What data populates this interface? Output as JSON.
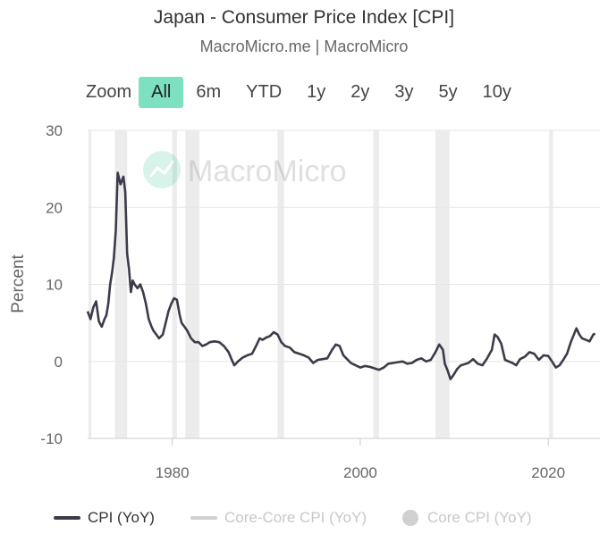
{
  "chart_data": {
    "type": "line",
    "title": "Japan - Consumer Price Index [CPI]",
    "subtitle": "MacroMicro.me | MacroMicro",
    "ylabel": "Percent",
    "xlabel": "",
    "xlim": [
      1971,
      2025.5
    ],
    "ylim": [
      -10,
      30
    ],
    "yticks": [
      30,
      20,
      10,
      0,
      -10
    ],
    "xticks": [
      1980,
      2000,
      2020
    ],
    "watermark": "MacroMicro",
    "recessions": [
      [
        1971.1,
        1971.4
      ],
      [
        1973.9,
        1975.2
      ],
      [
        1980.0,
        1980.5
      ],
      [
        1981.4,
        1982.9
      ],
      [
        1991.2,
        1991.9
      ],
      [
        2001.4,
        2002.0
      ],
      [
        2008.0,
        2009.5
      ],
      [
        2020.1,
        2020.5
      ]
    ],
    "series": [
      {
        "name": "CPI (YoY)",
        "color": "#3b3b4a",
        "x": [
          1971.0,
          1971.3,
          1971.6,
          1971.9,
          1972.2,
          1972.5,
          1972.8,
          1973.0,
          1973.2,
          1973.4,
          1973.6,
          1973.8,
          1974.0,
          1974.2,
          1974.5,
          1974.8,
          1975.0,
          1975.2,
          1975.4,
          1975.6,
          1975.8,
          1976.0,
          1976.3,
          1976.6,
          1976.9,
          1977.2,
          1977.5,
          1977.8,
          1978.0,
          1978.3,
          1978.6,
          1979.0,
          1979.3,
          1979.6,
          1979.9,
          1980.2,
          1980.5,
          1980.8,
          1981.0,
          1981.3,
          1981.6,
          1982.0,
          1982.4,
          1982.8,
          1983.2,
          1983.6,
          1984.0,
          1984.5,
          1985.0,
          1985.5,
          1986.0,
          1986.3,
          1986.6,
          1987.0,
          1987.5,
          1988.0,
          1988.5,
          1989.0,
          1989.3,
          1989.6,
          1990.0,
          1990.4,
          1990.8,
          1991.2,
          1991.6,
          1992.0,
          1992.5,
          1993.0,
          1993.5,
          1994.0,
          1994.5,
          1995.0,
          1995.5,
          1996.0,
          1996.5,
          1997.0,
          1997.4,
          1997.8,
          1998.2,
          1998.6,
          1999.0,
          1999.5,
          2000.0,
          2000.5,
          2001.0,
          2001.5,
          2002.0,
          2002.5,
          2003.0,
          2003.5,
          2004.0,
          2004.5,
          2005.0,
          2005.5,
          2006.0,
          2006.5,
          2007.0,
          2007.5,
          2008.0,
          2008.4,
          2008.8,
          2009.0,
          2009.3,
          2009.6,
          2009.9,
          2010.3,
          2010.7,
          2011.0,
          2011.5,
          2012.0,
          2012.5,
          2013.0,
          2013.5,
          2014.0,
          2014.3,
          2014.6,
          2015.0,
          2015.4,
          2015.8,
          2016.2,
          2016.6,
          2017.0,
          2017.5,
          2018.0,
          2018.5,
          2019.0,
          2019.5,
          2020.0,
          2020.4,
          2020.8,
          2021.2,
          2021.6,
          2022.0,
          2022.4,
          2022.8,
          2023.0,
          2023.3,
          2023.6,
          2024.0,
          2024.4,
          2024.8,
          2025.0
        ],
        "values": [
          6.5,
          5.5,
          7.0,
          7.8,
          5.2,
          4.5,
          5.5,
          6.0,
          7.5,
          10.0,
          11.5,
          13.5,
          17.0,
          24.5,
          23.0,
          24.0,
          22.0,
          14.0,
          12.0,
          9.0,
          10.5,
          10.0,
          9.5,
          10.0,
          9.0,
          7.5,
          5.5,
          4.5,
          4.0,
          3.5,
          3.0,
          3.5,
          5.0,
          6.5,
          7.5,
          8.2,
          8.0,
          6.0,
          5.0,
          4.5,
          4.0,
          3.0,
          2.5,
          2.5,
          2.0,
          2.2,
          2.5,
          2.6,
          2.5,
          2.0,
          1.2,
          0.3,
          -0.5,
          0.0,
          0.5,
          0.8,
          1.0,
          2.2,
          3.0,
          2.8,
          3.1,
          3.3,
          3.8,
          3.5,
          2.5,
          2.0,
          1.8,
          1.2,
          1.0,
          0.8,
          0.5,
          -0.2,
          0.2,
          0.3,
          0.4,
          1.5,
          2.2,
          2.0,
          0.8,
          0.3,
          -0.2,
          -0.5,
          -0.8,
          -0.6,
          -0.7,
          -0.9,
          -1.1,
          -0.8,
          -0.3,
          -0.2,
          -0.1,
          0.0,
          -0.3,
          -0.2,
          0.2,
          0.4,
          0.0,
          0.2,
          1.2,
          2.2,
          1.5,
          -0.3,
          -1.2,
          -2.3,
          -1.8,
          -1.0,
          -0.5,
          -0.4,
          -0.2,
          0.3,
          -0.3,
          -0.5,
          0.4,
          1.5,
          3.5,
          3.2,
          2.3,
          0.2,
          0.0,
          -0.2,
          -0.5,
          0.3,
          0.6,
          1.2,
          1.0,
          0.2,
          0.8,
          0.7,
          0.0,
          -0.8,
          -0.5,
          0.2,
          1.0,
          2.5,
          3.7,
          4.3,
          3.5,
          3.0,
          2.8,
          2.6,
          3.5,
          3.6
        ]
      },
      {
        "name": "Core-Core CPI (YoY)",
        "color": "#cfcfcf",
        "values": []
      },
      {
        "name": "Core CPI (YoY)",
        "color": "#cfcfcf",
        "values": []
      }
    ],
    "legend_position": "bottom"
  },
  "zoom": {
    "label": "Zoom",
    "options": [
      "All",
      "6m",
      "YTD",
      "1y",
      "2y",
      "3y",
      "5y",
      "10y"
    ],
    "selected": "All"
  }
}
